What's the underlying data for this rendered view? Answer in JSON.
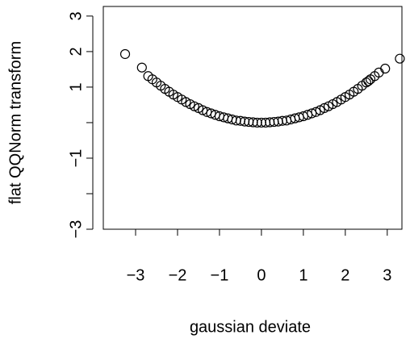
{
  "chart_data": {
    "type": "scatter",
    "x_label": "gaussian deviate",
    "y_label": "flat QQNorm transform",
    "x": [
      -3.25,
      -2.85,
      -2.7,
      -2.6,
      -2.5,
      -2.4,
      -2.3,
      -2.2,
      -2.1,
      -2.0,
      -1.9,
      -1.8,
      -1.7,
      -1.6,
      -1.5,
      -1.4,
      -1.3,
      -1.2,
      -1.1,
      -1.0,
      -0.9,
      -0.8,
      -0.7,
      -0.6,
      -0.5,
      -0.4,
      -0.3,
      -0.2,
      -0.1,
      0,
      0.1,
      0.2,
      0.3,
      0.4,
      0.5,
      0.6,
      0.7,
      0.8,
      0.9,
      1.0,
      1.1,
      1.2,
      1.3,
      1.4,
      1.5,
      1.6,
      1.7,
      1.8,
      1.9,
      2.0,
      2.1,
      2.2,
      2.3,
      2.4,
      2.5,
      2.55,
      2.6,
      2.7,
      2.8,
      2.95,
      3.3
    ],
    "values": [
      1.93,
      1.55,
      1.31,
      1.22,
      1.13,
      1.04,
      0.95,
      0.87,
      0.79,
      0.72,
      0.65,
      0.58,
      0.52,
      0.46,
      0.41,
      0.35,
      0.3,
      0.26,
      0.22,
      0.18,
      0.15,
      0.12,
      0.09,
      0.06,
      0.05,
      0.03,
      0.02,
      0.01,
      0,
      0,
      0,
      0.01,
      0.02,
      0.03,
      0.05,
      0.06,
      0.09,
      0.12,
      0.15,
      0.18,
      0.22,
      0.26,
      0.3,
      0.35,
      0.41,
      0.46,
      0.52,
      0.58,
      0.65,
      0.72,
      0.79,
      0.87,
      0.95,
      1.04,
      1.13,
      1.17,
      1.22,
      1.31,
      1.41,
      1.52,
      1.8
    ],
    "color": "#000000",
    "xlim": [
      -3.77,
      3.35
    ],
    "ylim": [
      -3.0,
      3.27
    ],
    "xticks": [
      {
        "value": -3,
        "label": "−3"
      },
      {
        "value": -2,
        "label": "−2"
      },
      {
        "value": -1,
        "label": "−1"
      },
      0,
      1,
      2,
      3
    ],
    "yticks": [
      {
        "value": -3,
        "label": "−3"
      },
      {
        "value": -2
      },
      {
        "value": -1,
        "label": "−1"
      },
      {
        "value": 0
      },
      1,
      2,
      3
    ]
  }
}
